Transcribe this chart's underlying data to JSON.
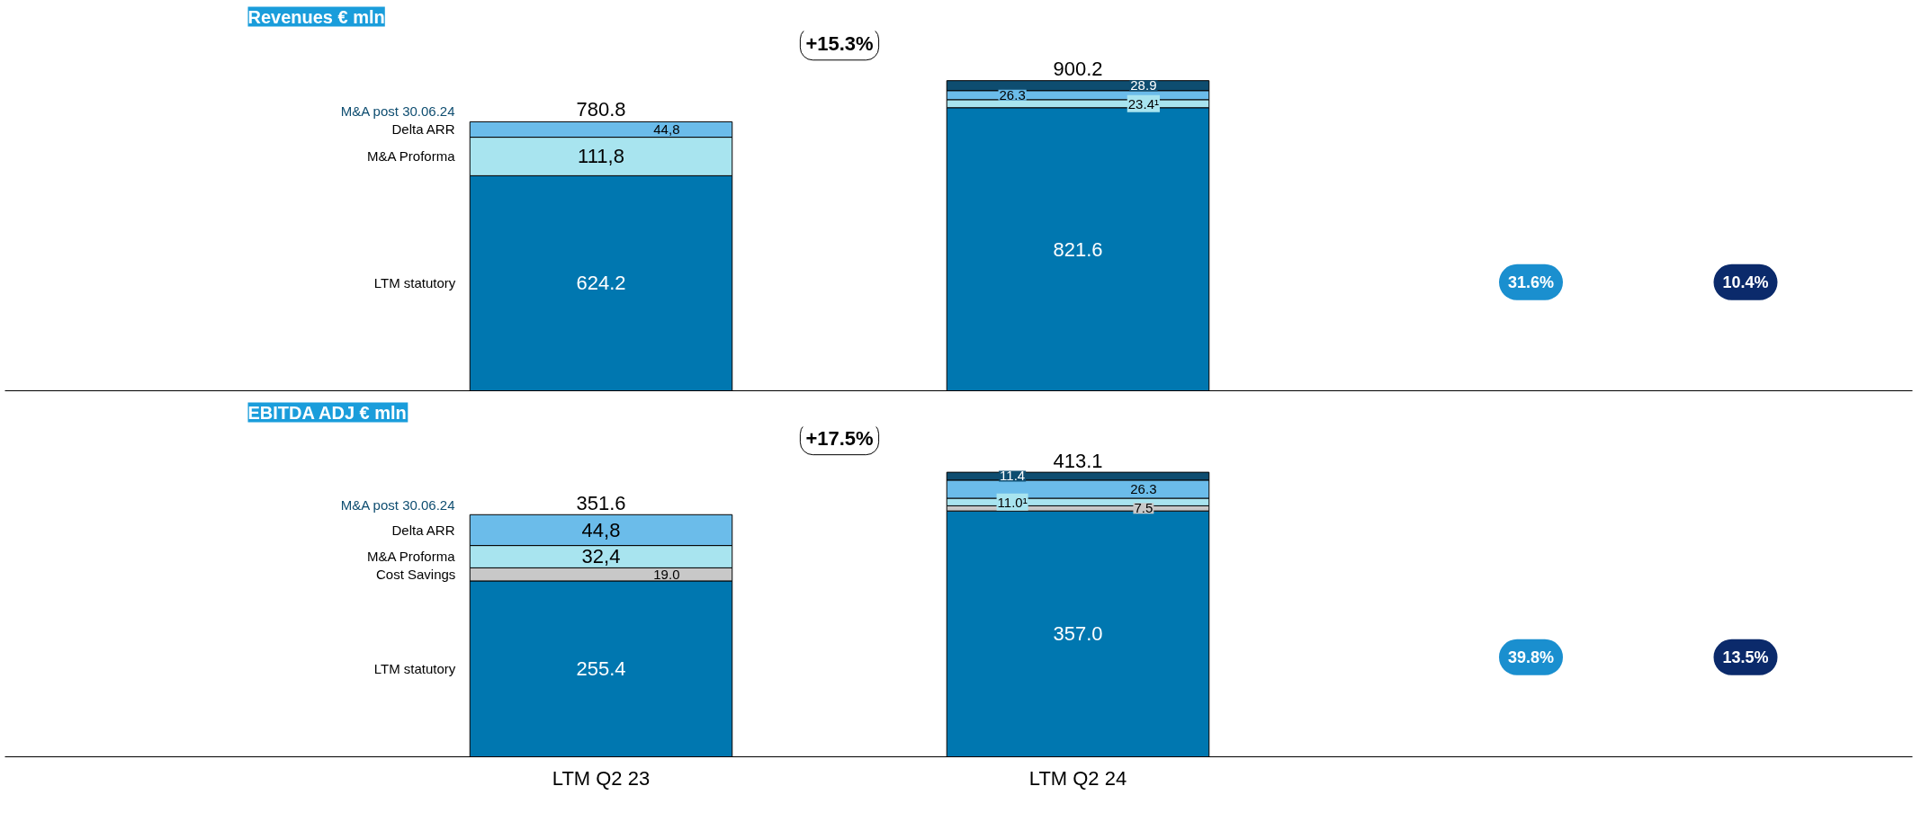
{
  "chart_data": [
    {
      "type": "bar",
      "stacked": true,
      "title": "Revenues € mln",
      "categories": [
        null,
        null
      ],
      "series": [
        {
          "name": "LTM statutory",
          "color": "#0077b0",
          "values": [
            624.2,
            821.6
          ],
          "value_labels": [
            "624.2",
            "821.6"
          ]
        },
        {
          "name": "M&A Proforma",
          "color": "#a8e4ef",
          "values": [
            111.8,
            23.4
          ],
          "value_labels": [
            "111,8",
            "23.4¹"
          ]
        },
        {
          "name": "Delta ARR",
          "color": "#6bbcea",
          "values": [
            44.8,
            26.3
          ],
          "value_labels": [
            "44,8",
            "26.3"
          ]
        },
        {
          "name": "M&A post 30.06.24",
          "color": "#0e4d70",
          "values": [
            null,
            28.9
          ],
          "value_labels": [
            null,
            "28.9"
          ]
        }
      ],
      "totals": [
        "780.8",
        "900.2"
      ],
      "annotations": [
        "+15.3%",
        "31.6%",
        "10.4%"
      ]
    },
    {
      "type": "bar",
      "stacked": true,
      "title": "EBITDA ADJ € mln",
      "categories": [
        "LTM Q2 23",
        "LTM Q2 24"
      ],
      "tick_labels": "x",
      "series": [
        {
          "name": "LTM statutory",
          "color": "#0077b0",
          "values": [
            255.4,
            357.0
          ],
          "value_labels": [
            "255.4",
            "357.0"
          ]
        },
        {
          "name": "Cost Savings",
          "color": "#c8c8c8",
          "values": [
            19.0,
            7.5
          ],
          "value_labels": [
            "19.0",
            "7.5"
          ]
        },
        {
          "name": "M&A Proforma",
          "color": "#a8e4ef",
          "values": [
            32.4,
            11.0
          ],
          "value_labels": [
            "32,4",
            "11.0¹"
          ]
        },
        {
          "name": "Delta ARR",
          "color": "#6bbcea",
          "values": [
            44.8,
            26.3
          ],
          "value_labels": [
            "44,8",
            "26.3"
          ]
        },
        {
          "name": "M&A post 30.06.24",
          "color": "#0e4d70",
          "values": [
            null,
            11.4
          ],
          "value_labels": [
            null,
            "11.4"
          ]
        }
      ],
      "totals": [
        "351.6",
        "413.1"
      ],
      "annotations": [
        "+17.5%",
        "39.8%",
        "13.5%"
      ]
    }
  ]
}
